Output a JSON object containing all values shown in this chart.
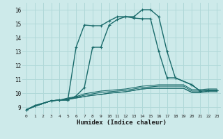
{
  "xlabel": "Humidex (Indice chaleur)",
  "xlim": [
    -0.5,
    23.5
  ],
  "ylim": [
    8.5,
    16.5
  ],
  "xticks": [
    0,
    1,
    2,
    3,
    4,
    5,
    6,
    7,
    8,
    9,
    10,
    11,
    12,
    13,
    14,
    15,
    16,
    17,
    18,
    19,
    20,
    21,
    22,
    23
  ],
  "yticks": [
    9,
    10,
    11,
    12,
    13,
    14,
    15,
    16
  ],
  "bg_color": "#cdeaea",
  "grid_color": "#b0d8d8",
  "line_color": "#1a6b6b",
  "lines": [
    {
      "x": [
        0,
        1,
        3,
        4,
        5,
        6,
        7,
        8,
        9,
        10,
        11,
        12,
        13,
        14,
        15,
        16,
        17,
        18,
        20,
        21,
        22,
        23
      ],
      "y": [
        8.8,
        9.1,
        9.45,
        9.5,
        9.5,
        13.3,
        14.9,
        14.85,
        14.85,
        15.2,
        15.5,
        15.5,
        15.4,
        15.35,
        15.35,
        13.0,
        11.1,
        11.1,
        10.6,
        10.15,
        10.2,
        10.2
      ],
      "has_markers": true,
      "lw": 1.0
    },
    {
      "x": [
        0,
        1,
        3,
        4,
        5,
        6,
        7,
        8,
        9,
        10,
        11,
        12,
        13,
        14,
        15,
        16,
        17,
        18,
        20,
        21,
        22,
        23
      ],
      "y": [
        8.8,
        9.1,
        9.45,
        9.5,
        9.5,
        9.8,
        10.4,
        13.3,
        13.3,
        14.9,
        15.3,
        15.5,
        15.5,
        16.0,
        16.0,
        15.5,
        13.0,
        11.1,
        10.6,
        10.15,
        10.2,
        10.2
      ],
      "has_markers": true,
      "lw": 1.0
    },
    {
      "x": [
        0,
        1,
        3,
        4,
        5,
        6,
        7,
        8,
        9,
        10,
        11,
        12,
        13,
        14,
        15,
        16,
        17,
        18,
        19,
        20,
        21,
        22,
        23
      ],
      "y": [
        8.8,
        9.05,
        9.45,
        9.5,
        9.55,
        9.65,
        9.75,
        9.85,
        9.9,
        10.0,
        10.05,
        10.1,
        10.2,
        10.3,
        10.35,
        10.35,
        10.35,
        10.35,
        10.35,
        10.05,
        10.05,
        10.1,
        10.1
      ],
      "has_markers": false,
      "lw": 0.8
    },
    {
      "x": [
        0,
        1,
        3,
        4,
        5,
        6,
        7,
        8,
        9,
        10,
        11,
        12,
        13,
        14,
        15,
        16,
        17,
        18,
        19,
        20,
        21,
        22,
        23
      ],
      "y": [
        8.8,
        9.05,
        9.45,
        9.5,
        9.55,
        9.65,
        9.75,
        9.85,
        9.9,
        10.0,
        10.05,
        10.1,
        10.2,
        10.3,
        10.35,
        10.35,
        10.35,
        10.35,
        10.35,
        10.05,
        10.05,
        10.15,
        10.15
      ],
      "has_markers": false,
      "lw": 0.8
    },
    {
      "x": [
        0,
        1,
        3,
        4,
        5,
        6,
        7,
        8,
        9,
        10,
        11,
        12,
        13,
        14,
        15,
        16,
        17,
        18,
        19,
        20,
        21,
        22,
        23
      ],
      "y": [
        8.8,
        9.05,
        9.45,
        9.5,
        9.6,
        9.7,
        9.85,
        9.95,
        10.05,
        10.1,
        10.15,
        10.2,
        10.3,
        10.4,
        10.45,
        10.5,
        10.5,
        10.5,
        10.5,
        10.15,
        10.15,
        10.2,
        10.2
      ],
      "has_markers": false,
      "lw": 0.8
    },
    {
      "x": [
        0,
        1,
        3,
        4,
        5,
        6,
        7,
        8,
        9,
        10,
        11,
        12,
        13,
        14,
        15,
        16,
        17,
        18,
        19,
        20,
        21,
        22,
        23
      ],
      "y": [
        8.8,
        9.05,
        9.45,
        9.5,
        9.65,
        9.75,
        9.95,
        10.05,
        10.15,
        10.2,
        10.25,
        10.3,
        10.4,
        10.5,
        10.55,
        10.6,
        10.6,
        10.6,
        10.6,
        10.25,
        10.25,
        10.3,
        10.3
      ],
      "has_markers": false,
      "lw": 0.8
    }
  ]
}
